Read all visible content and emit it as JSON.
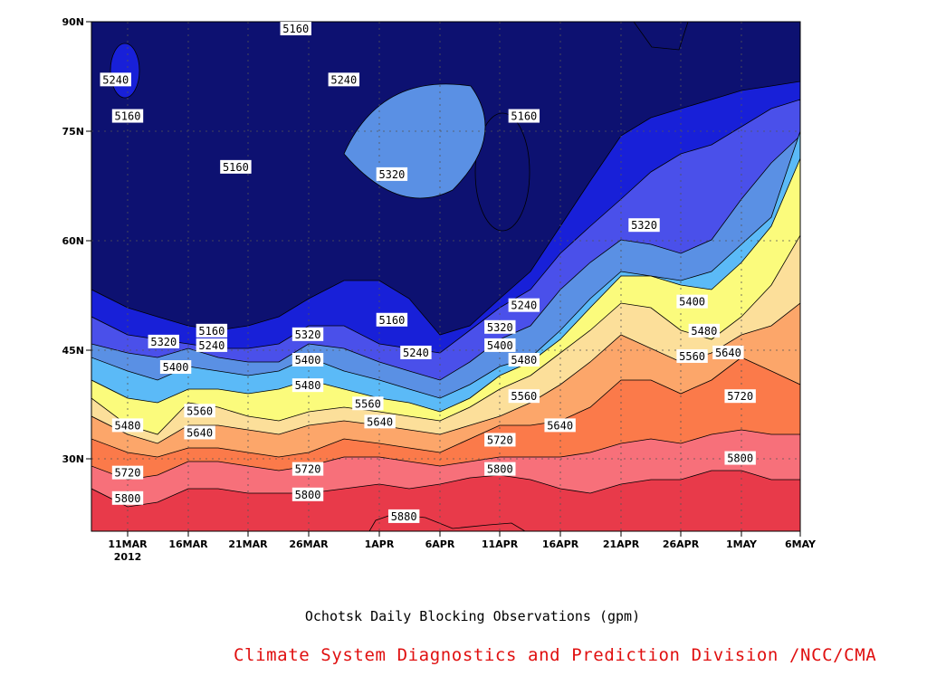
{
  "chart_data": {
    "type": "heatmap",
    "title": "Ochotsk Daily Blocking Observations (gpm)",
    "x_ticks": [
      "11MAR",
      "16MAR",
      "21MAR",
      "26MAR",
      "1APR",
      "6APR",
      "11APR",
      "16APR",
      "21APR",
      "26APR",
      "1MAY",
      "6MAY"
    ],
    "x_year": "2012",
    "y_ticks": [
      "90N",
      "75N",
      "60N",
      "45N",
      "30N"
    ],
    "ylim": [
      "20N",
      "90N"
    ],
    "contour_levels": [
      5160,
      5240,
      5320,
      5400,
      5480,
      5560,
      5640,
      5720,
      5800,
      5880
    ],
    "fill_colors": [
      "#0d1171",
      "#1820d8",
      "#4a50ea",
      "#5a90e4",
      "#5bbaf7",
      "#fbfb7c",
      "#fcdf9a",
      "#fca66a",
      "#fb7a4a",
      "#f7707a",
      "#e83a4a"
    ],
    "grid": true,
    "contour_labels": [
      {
        "text": "5160",
        "date": "11MAR",
        "lat": 77
      },
      {
        "text": "5240",
        "date": "10MAR",
        "lat": 82
      },
      {
        "text": "5160",
        "date": "20MAR",
        "lat": 70
      },
      {
        "text": "5160",
        "date": "25MAR",
        "lat": 89
      },
      {
        "text": "5240",
        "date": "29MAR",
        "lat": 82
      },
      {
        "text": "5320",
        "date": "2APR",
        "lat": 69
      },
      {
        "text": "5160",
        "date": "13APR",
        "lat": 77
      },
      {
        "text": "5320",
        "date": "23APR",
        "lat": 62
      },
      {
        "text": "5240",
        "date": "13APR",
        "lat": 51
      },
      {
        "text": "5160",
        "date": "2APR",
        "lat": 49
      },
      {
        "text": "5160",
        "date": "18MAR",
        "lat": 47.5
      },
      {
        "text": "5320",
        "date": "14MAR",
        "lat": 46
      },
      {
        "text": "5240",
        "date": "18MAR",
        "lat": 45.5
      },
      {
        "text": "5320",
        "date": "26MAR",
        "lat": 47
      },
      {
        "text": "5240",
        "date": "4APR",
        "lat": 44.5
      },
      {
        "text": "5320",
        "date": "11APR",
        "lat": 48
      },
      {
        "text": "5400",
        "date": "11APR",
        "lat": 45.5
      },
      {
        "text": "5400",
        "date": "15MAR",
        "lat": 42.5
      },
      {
        "text": "5400",
        "date": "26MAR",
        "lat": 43.5
      },
      {
        "text": "5480",
        "date": "13APR",
        "lat": 43.5
      },
      {
        "text": "5400",
        "date": "27APR",
        "lat": 51.5
      },
      {
        "text": "5480",
        "date": "28APR",
        "lat": 47.5
      },
      {
        "text": "5560",
        "date": "27APR",
        "lat": 44
      },
      {
        "text": "5640",
        "date": "30APR",
        "lat": 44.5
      },
      {
        "text": "5480",
        "date": "26MAR",
        "lat": 40
      },
      {
        "text": "5560",
        "date": "13APR",
        "lat": 38.5
      },
      {
        "text": "5560",
        "date": "31MAR",
        "lat": 37.5
      },
      {
        "text": "5480",
        "date": "11MAR",
        "lat": 34.5
      },
      {
        "text": "5560",
        "date": "17MAR",
        "lat": 36.5
      },
      {
        "text": "5640",
        "date": "17MAR",
        "lat": 33.5
      },
      {
        "text": "5640",
        "date": "1APR",
        "lat": 35
      },
      {
        "text": "5640",
        "date": "16APR",
        "lat": 34.5
      },
      {
        "text": "5720",
        "date": "11APR",
        "lat": 32.5
      },
      {
        "text": "5720",
        "date": "1MAY",
        "lat": 38.5
      },
      {
        "text": "5720",
        "date": "11MAR",
        "lat": 28
      },
      {
        "text": "5720",
        "date": "26MAR",
        "lat": 28.5
      },
      {
        "text": "5800",
        "date": "11MAR",
        "lat": 24.5
      },
      {
        "text": "5800",
        "date": "26MAR",
        "lat": 25
      },
      {
        "text": "5800",
        "date": "11APR",
        "lat": 28.5
      },
      {
        "text": "5800",
        "date": "1MAY",
        "lat": 30
      },
      {
        "text": "5880",
        "date": "3APR",
        "lat": 22
      }
    ]
  },
  "footer": {
    "credit": "Climate System Diagnostics and Prediction Division /NCC/CMA"
  }
}
